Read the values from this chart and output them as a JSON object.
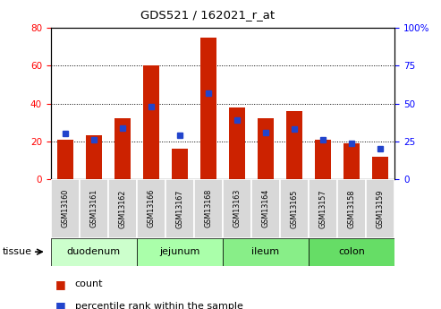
{
  "title": "GDS521 / 162021_r_at",
  "samples": [
    "GSM13160",
    "GSM13161",
    "GSM13162",
    "GSM13166",
    "GSM13167",
    "GSM13168",
    "GSM13163",
    "GSM13164",
    "GSM13165",
    "GSM13157",
    "GSM13158",
    "GSM13159"
  ],
  "count_values": [
    21,
    23,
    32,
    60,
    16,
    75,
    38,
    32,
    36,
    21,
    19,
    12
  ],
  "percentile_values": [
    30,
    26,
    34,
    48,
    29,
    57,
    39,
    31,
    33,
    26,
    24,
    20
  ],
  "left_ylim": [
    0,
    80
  ],
  "right_ylim": [
    0,
    100
  ],
  "left_yticks": [
    0,
    20,
    40,
    60,
    80
  ],
  "right_yticks": [
    0,
    25,
    50,
    75,
    100
  ],
  "right_yticklabels": [
    "0",
    "25",
    "50",
    "75",
    "100%"
  ],
  "bar_color": "#cc2200",
  "percentile_color": "#2244cc",
  "tissue_groups": [
    {
      "label": "duodenum",
      "start": 0,
      "end": 3
    },
    {
      "label": "jejunum",
      "start": 3,
      "end": 6
    },
    {
      "label": "ileum",
      "start": 6,
      "end": 9
    },
    {
      "label": "colon",
      "start": 9,
      "end": 12
    }
  ],
  "group_colors": [
    "#ccffcc",
    "#aaffaa",
    "#88ee88",
    "#66dd66"
  ],
  "legend_count_label": "count",
  "legend_percentile_label": "percentile rank within the sample",
  "tissue_label": "tissue",
  "bar_width": 0.55,
  "plot_bg": "#ffffff"
}
